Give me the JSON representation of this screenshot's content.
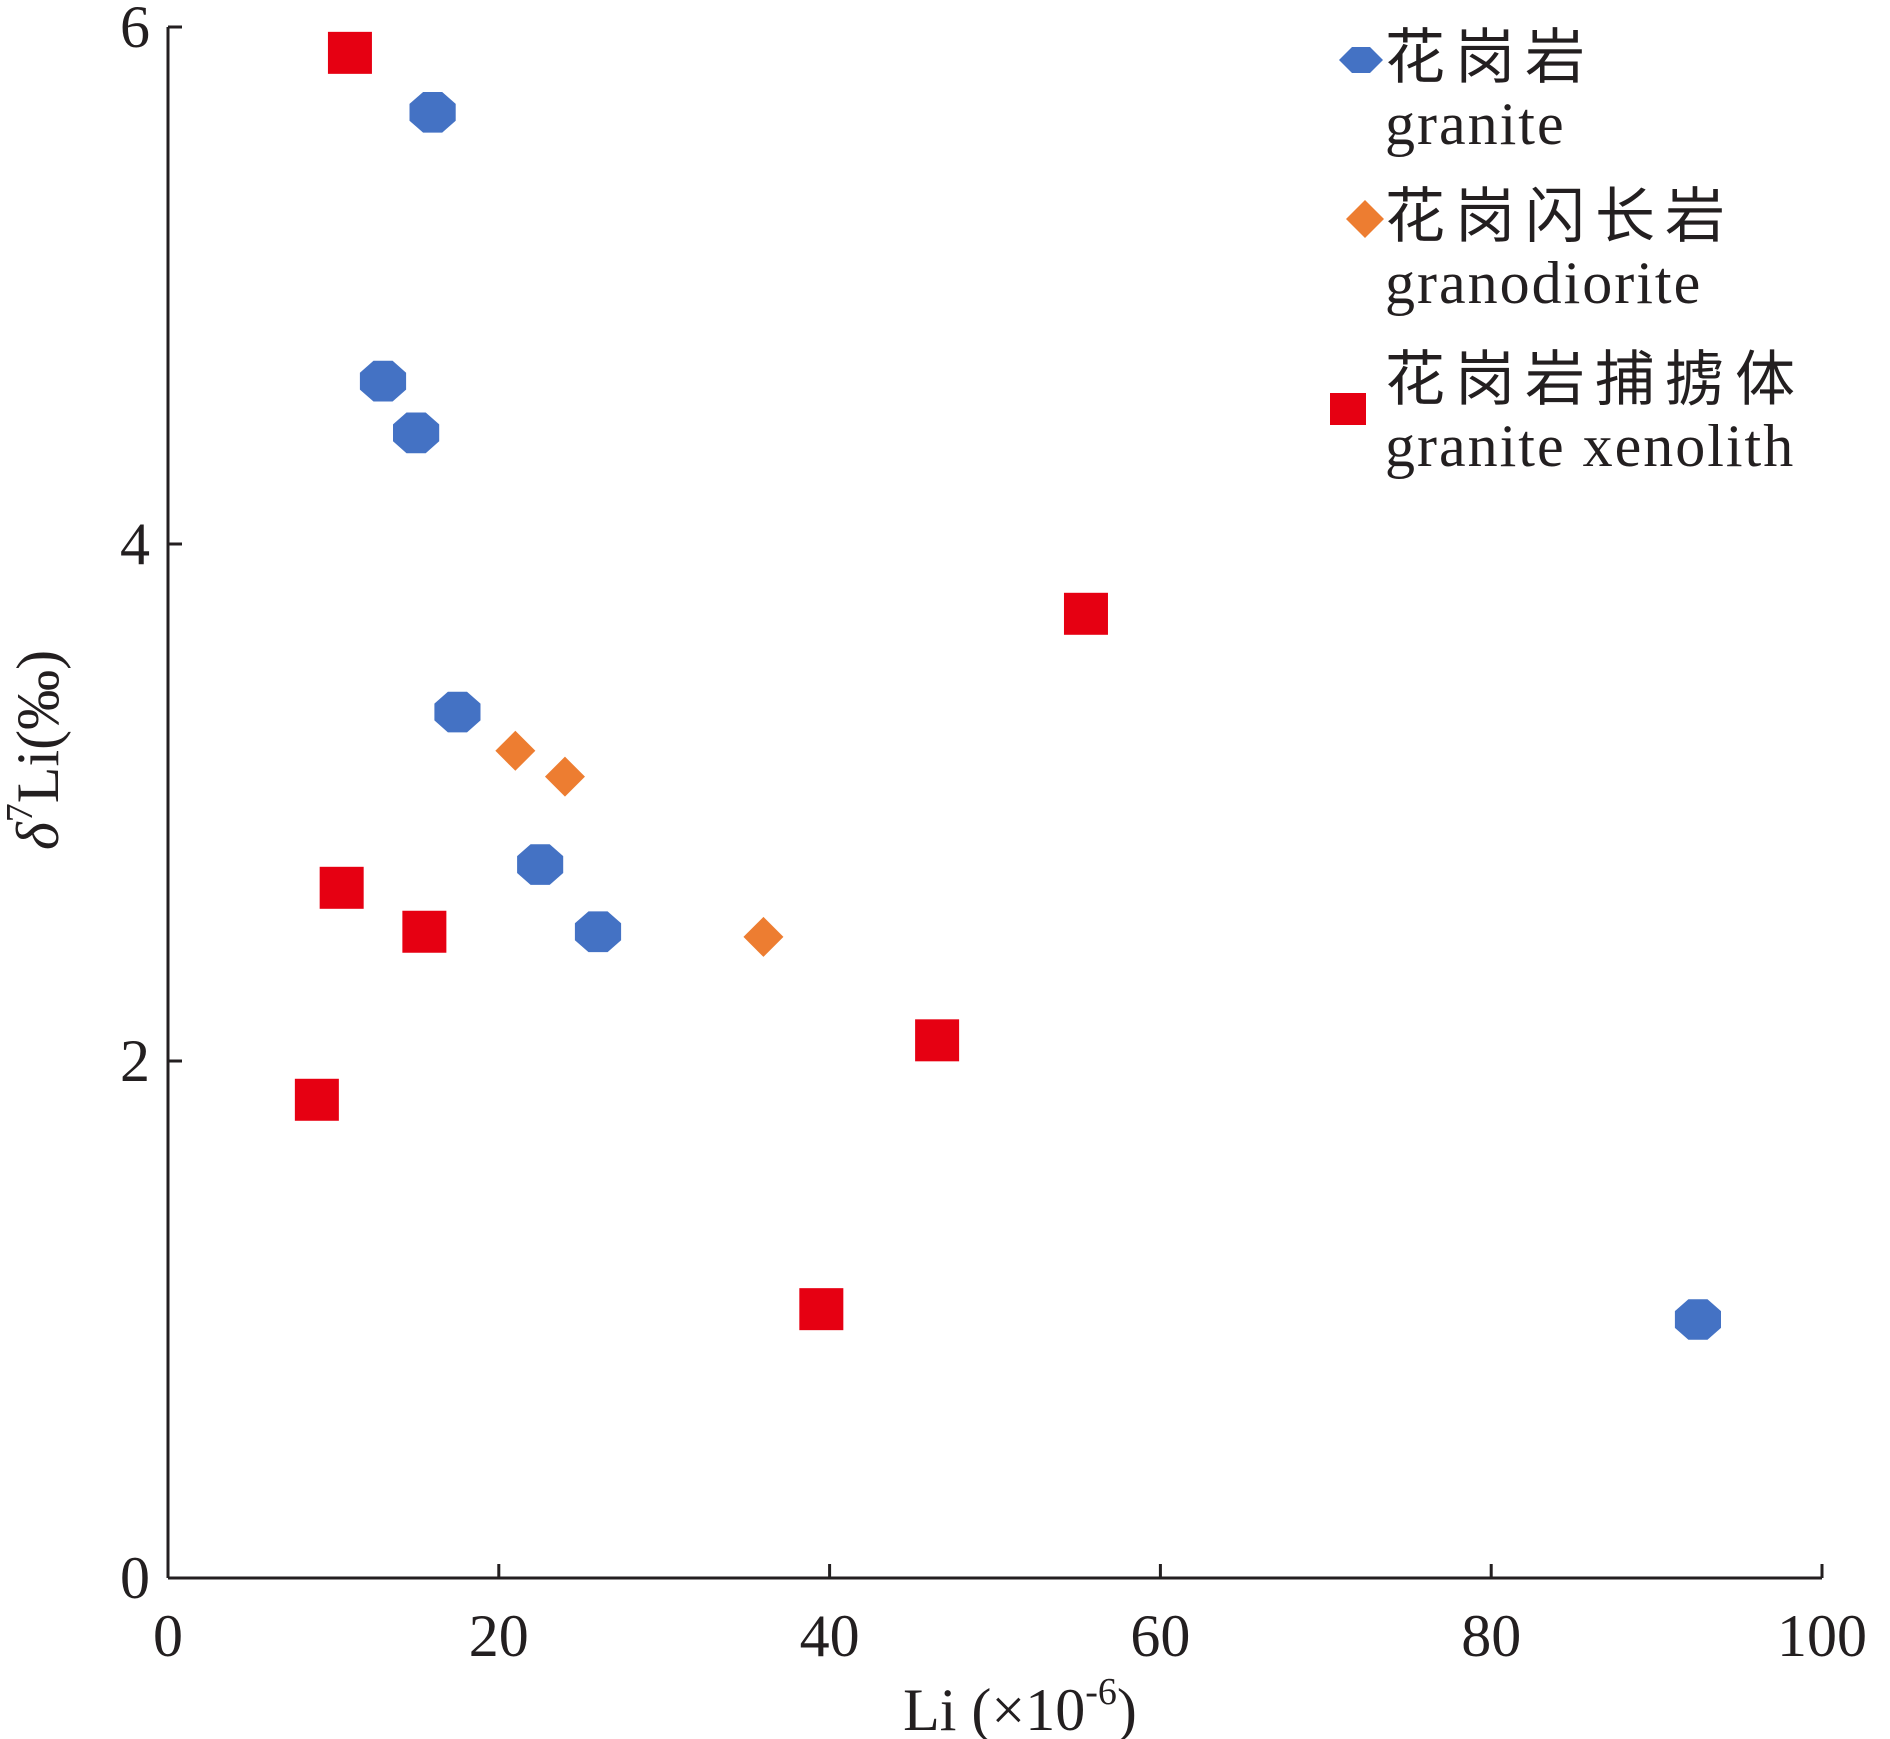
{
  "chart_data": {
    "type": "scatter",
    "xlabel": "Li (×10",
    "xlabel_superscript": "-6",
    "xlabel_suffix": ")",
    "ylabel_prefix": "δ",
    "ylabel_superscript": "7",
    "ylabel_rest": "Li(‰)",
    "xlim": [
      0,
      100
    ],
    "ylim": [
      0,
      6
    ],
    "x_ticks": [
      0,
      20,
      40,
      60,
      80,
      100
    ],
    "y_ticks": [
      0,
      2,
      4,
      6
    ],
    "grid": false,
    "legend_position": "top-right",
    "series": [
      {
        "name": "花岗岩",
        "name_en": "granite",
        "marker": "circle",
        "color": "#4472c4",
        "points": [
          [
            16,
            5.67
          ],
          [
            13,
            4.63
          ],
          [
            15,
            4.43
          ],
          [
            17.5,
            3.35
          ],
          [
            22.5,
            2.76
          ],
          [
            26,
            2.5
          ],
          [
            92.5,
            1.0
          ]
        ]
      },
      {
        "name": "花岗闪长岩",
        "name_en": "granodiorite",
        "marker": "diamond",
        "color": "#ed7d31",
        "points": [
          [
            21,
            3.2
          ],
          [
            24,
            3.1
          ],
          [
            36,
            2.48
          ]
        ]
      },
      {
        "name": "花岗岩捕掳体",
        "name_en": "granite xenolith",
        "marker": "square",
        "color": "#e60012",
        "points": [
          [
            11,
            5.9
          ],
          [
            55.5,
            3.73
          ],
          [
            10.5,
            2.67
          ],
          [
            15.5,
            2.5
          ],
          [
            46.5,
            2.08
          ],
          [
            9,
            1.85
          ],
          [
            39.5,
            1.04
          ]
        ]
      }
    ]
  }
}
